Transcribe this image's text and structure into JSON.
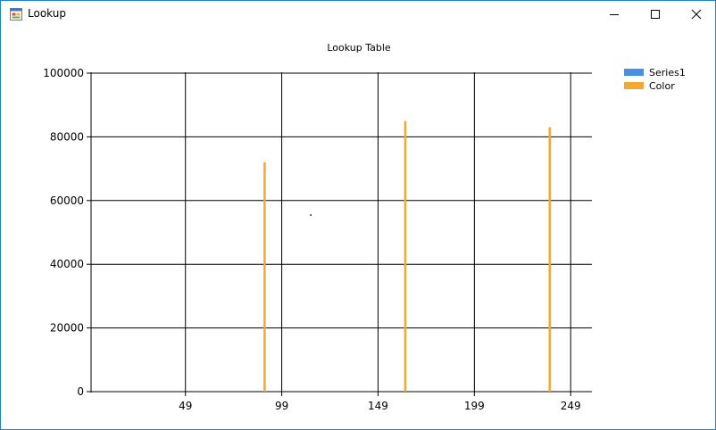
{
  "window": {
    "title": "Lookup",
    "icon": "app-window-icon",
    "controls": [
      "minimize-icon",
      "maximize-icon",
      "close-icon"
    ]
  },
  "chart_data": {
    "type": "bar",
    "title": "Lookup Table",
    "xlabel": "",
    "ylabel": "",
    "ylim": [
      0,
      100000
    ],
    "xlim": [
      0,
      254
    ],
    "x_ticks": [
      49,
      99,
      149,
      199,
      249
    ],
    "y_ticks": [
      0,
      20000,
      40000,
      60000,
      80000,
      100000
    ],
    "grid": true,
    "legend_position": "top-right",
    "series": [
      {
        "name": "Series1",
        "color": "#4a90e2",
        "points": [
          {
            "x": 114,
            "y": 55500
          }
        ]
      },
      {
        "name": "Color",
        "color": "#f5a734",
        "points": [
          {
            "x": 90,
            "y": 72000
          },
          {
            "x": 163,
            "y": 85000
          },
          {
            "x": 238,
            "y": 83000
          }
        ]
      }
    ]
  }
}
